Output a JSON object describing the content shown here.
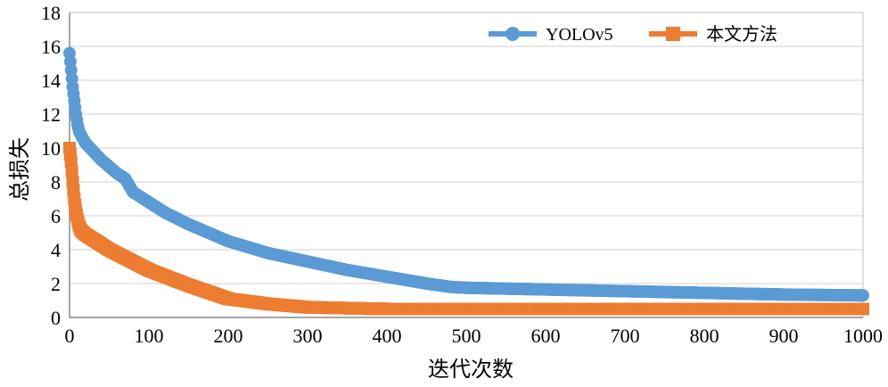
{
  "chart_data": {
    "type": "line",
    "title": "",
    "xlabel": "迭代次数",
    "ylabel": "总损失",
    "xlim": [
      0,
      1000
    ],
    "ylim": [
      0,
      18
    ],
    "x_ticks": [
      0,
      100,
      200,
      300,
      400,
      500,
      600,
      700,
      800,
      900,
      1000
    ],
    "y_ticks": [
      0,
      2,
      4,
      6,
      8,
      10,
      12,
      14,
      16,
      18
    ],
    "grid": "horizontal",
    "legend_position": "top-right",
    "series": [
      {
        "name": "YOLOv5",
        "color": "#5b9bd5",
        "marker": "circle",
        "x": [
          0,
          2,
          4,
          6,
          8,
          10,
          12,
          15,
          20,
          30,
          40,
          50,
          60,
          70,
          75,
          80,
          90,
          100,
          120,
          150,
          200,
          250,
          300,
          350,
          400,
          450,
          480,
          500,
          600,
          700,
          800,
          900,
          1000
        ],
        "y": [
          15.6,
          14.6,
          13.6,
          12.8,
          12.0,
          11.4,
          11.0,
          10.7,
          10.3,
          9.8,
          9.3,
          8.9,
          8.5,
          8.2,
          7.8,
          7.4,
          7.1,
          6.8,
          6.2,
          5.5,
          4.5,
          3.8,
          3.3,
          2.8,
          2.4,
          2.0,
          1.8,
          1.75,
          1.65,
          1.55,
          1.45,
          1.35,
          1.3
        ]
      },
      {
        "name": "本文方法",
        "color": "#ed7d31",
        "marker": "square",
        "x": [
          0,
          2,
          4,
          6,
          8,
          10,
          12,
          15,
          20,
          30,
          50,
          75,
          100,
          150,
          200,
          250,
          300,
          350,
          400,
          500,
          600,
          700,
          800,
          900,
          1000
        ],
        "y": [
          10.0,
          9.2,
          8.0,
          7.0,
          6.3,
          5.8,
          5.4,
          5.1,
          4.9,
          4.6,
          4.0,
          3.4,
          2.8,
          1.9,
          1.1,
          0.8,
          0.6,
          0.55,
          0.5,
          0.5,
          0.5,
          0.5,
          0.5,
          0.5,
          0.5
        ]
      }
    ]
  }
}
